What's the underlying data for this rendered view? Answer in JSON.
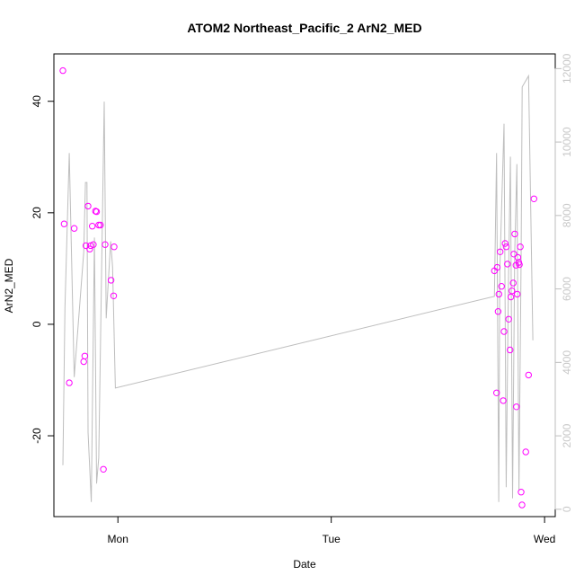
{
  "chart_data": {
    "type": "scatter",
    "title": "ATOM2 Northeast_Pacific_2 ArN2_MED",
    "xlabel": "Date",
    "ylabel": "ArN2_MED",
    "x_axis": {
      "type": "time",
      "range_days": [
        -0.3,
        2.05
      ],
      "ticks": [
        {
          "value": 0,
          "label": "Mon"
        },
        {
          "value": 1,
          "label": "Tue"
        },
        {
          "value": 2,
          "label": "Wed"
        }
      ]
    },
    "y_axis_left": {
      "range": [
        -34.5,
        48.5
      ],
      "ticks": [
        -20,
        0,
        20,
        40
      ]
    },
    "y_axis_right": {
      "range": [
        -200,
        12400
      ],
      "ticks": [
        0,
        2000,
        4000,
        6000,
        8000,
        10000,
        12000
      ],
      "label_color": "#c8c8c8"
    },
    "grid": false,
    "colors": {
      "points": "#ff00ff",
      "line": "#bebebe",
      "axis": "#000000"
    },
    "series": [
      {
        "type": "scatter",
        "axis": "left",
        "marker": "open-circle",
        "points": [
          [
            -0.258,
            45.5
          ],
          [
            -0.252,
            18.0
          ],
          [
            -0.228,
            -10.5
          ],
          [
            -0.205,
            17.2
          ],
          [
            -0.16,
            -6.7
          ],
          [
            -0.155,
            -5.7
          ],
          [
            -0.15,
            14.1
          ],
          [
            -0.14,
            21.2
          ],
          [
            -0.132,
            13.5
          ],
          [
            -0.128,
            14.1
          ],
          [
            -0.12,
            17.6
          ],
          [
            -0.115,
            14.3
          ],
          [
            -0.105,
            20.3
          ],
          [
            -0.1,
            20.2
          ],
          [
            -0.09,
            17.8
          ],
          [
            -0.082,
            17.8
          ],
          [
            -0.068,
            -26.0
          ],
          [
            -0.06,
            14.3
          ],
          [
            -0.032,
            7.9
          ],
          [
            -0.02,
            5.1
          ],
          [
            -0.018,
            13.9
          ],
          [
            1.765,
            9.6
          ],
          [
            1.775,
            -12.3
          ],
          [
            1.778,
            10.2
          ],
          [
            1.782,
            2.3
          ],
          [
            1.786,
            5.4
          ],
          [
            1.792,
            13.0
          ],
          [
            1.798,
            6.8
          ],
          [
            1.806,
            -13.7
          ],
          [
            1.81,
            -1.3
          ],
          [
            1.815,
            14.5
          ],
          [
            1.82,
            13.9
          ],
          [
            1.826,
            10.8
          ],
          [
            1.832,
            0.9
          ],
          [
            1.838,
            -4.6
          ],
          [
            1.842,
            4.9
          ],
          [
            1.847,
            6.0
          ],
          [
            1.853,
            7.4
          ],
          [
            1.856,
            12.6
          ],
          [
            1.86,
            16.2
          ],
          [
            1.866,
            10.6
          ],
          [
            1.868,
            -14.8
          ],
          [
            1.872,
            5.4
          ],
          [
            1.875,
            12.0
          ],
          [
            1.879,
            11.1
          ],
          [
            1.882,
            10.7
          ],
          [
            1.886,
            13.9
          ],
          [
            1.89,
            -30.1
          ],
          [
            1.894,
            -32.4
          ],
          [
            1.912,
            -22.9
          ],
          [
            1.925,
            -9.1
          ],
          [
            1.95,
            22.5
          ]
        ]
      },
      {
        "type": "line",
        "axis": "right",
        "points": [
          [
            -0.258,
            1200
          ],
          [
            -0.248,
            5500
          ],
          [
            -0.228,
            9700
          ],
          [
            -0.205,
            3600
          ],
          [
            -0.16,
            7000
          ],
          [
            -0.152,
            8900
          ],
          [
            -0.145,
            8900
          ],
          [
            -0.14,
            2100
          ],
          [
            -0.125,
            200
          ],
          [
            -0.11,
            7400
          ],
          [
            -0.1,
            700
          ],
          [
            -0.09,
            1400
          ],
          [
            -0.072,
            8100
          ],
          [
            -0.064,
            11100
          ],
          [
            -0.055,
            5200
          ],
          [
            -0.046,
            6100
          ],
          [
            -0.034,
            7300
          ],
          [
            -0.025,
            6600
          ],
          [
            -0.012,
            3300
          ],
          [
            1.765,
            5800
          ],
          [
            1.775,
            9700
          ],
          [
            1.785,
            200
          ],
          [
            1.79,
            6500
          ],
          [
            1.81,
            10500
          ],
          [
            1.82,
            600
          ],
          [
            1.83,
            6000
          ],
          [
            1.84,
            9600
          ],
          [
            1.85,
            300
          ],
          [
            1.86,
            7000
          ],
          [
            1.87,
            9400
          ],
          [
            1.88,
            500
          ],
          [
            1.89,
            6800
          ],
          [
            1.895,
            11500
          ],
          [
            1.925,
            11800
          ],
          [
            1.945,
            4600
          ]
        ]
      }
    ]
  }
}
